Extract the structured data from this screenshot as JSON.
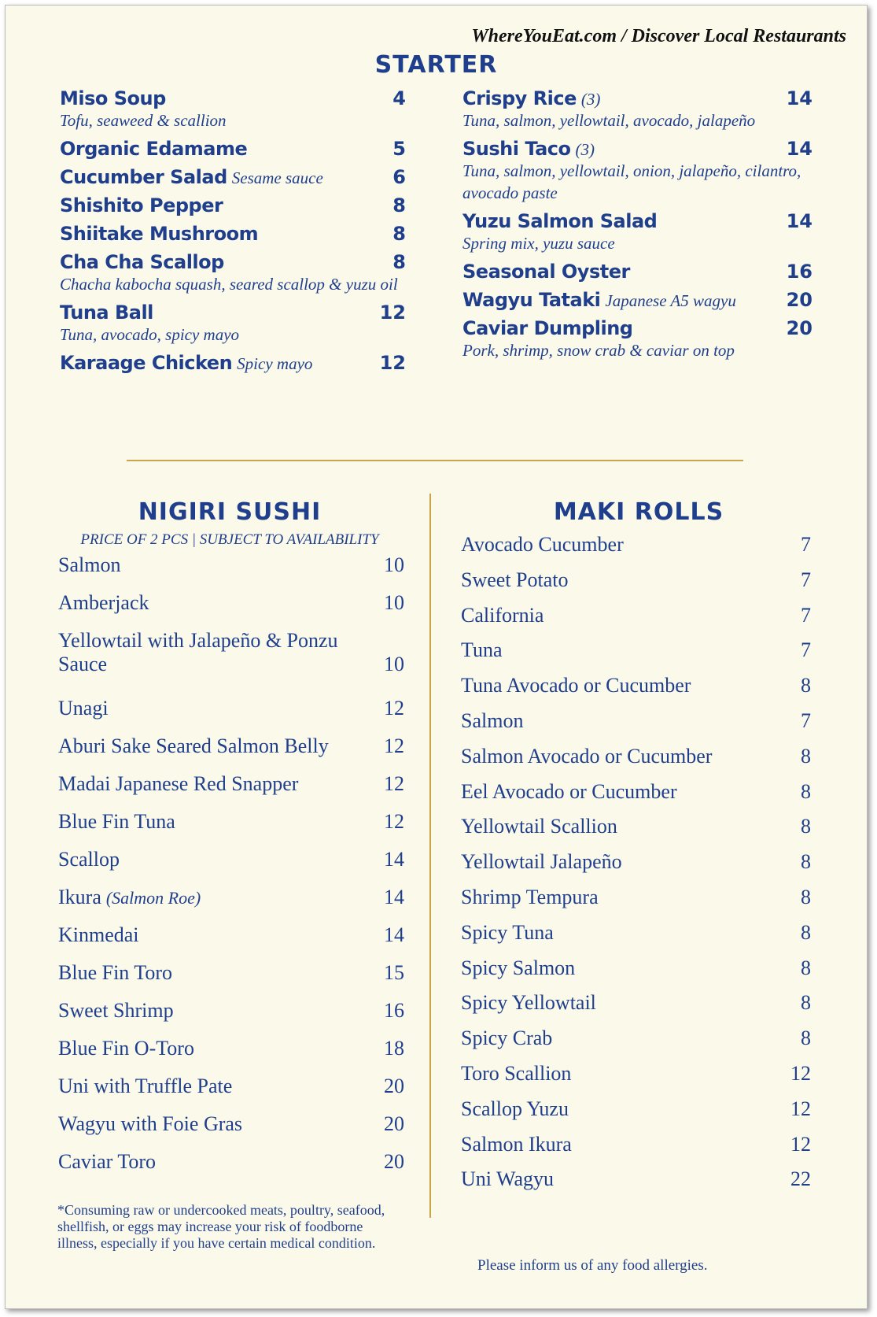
{
  "header": {
    "site": "WhereYouEat.com / Discover Local Restaurants"
  },
  "starter": {
    "title": "STARTER",
    "left": [
      {
        "name": "Miso Soup",
        "price": 4,
        "note": "Tofu, seaweed & scallion"
      },
      {
        "name": "Organic Edamame",
        "price": 5
      },
      {
        "name": "Cucumber Salad",
        "detail": "Sesame sauce",
        "price": 6
      },
      {
        "name": "Shishito Pepper",
        "price": 8
      },
      {
        "name": "Shiitake Mushroom",
        "price": 8
      },
      {
        "name": "Cha Cha Scallop",
        "price": 8,
        "note": "Chacha kabocha squash, seared scallop & yuzu oil"
      },
      {
        "name": "Tuna Ball",
        "price": 12,
        "note": "Tuna, avocado, spicy mayo"
      },
      {
        "name": "Karaage Chicken",
        "detail": "Spicy mayo",
        "price": 12
      }
    ],
    "right": [
      {
        "name": "Crispy Rice",
        "detail": "(3)",
        "price": 14,
        "note": "Tuna, salmon, yellowtail, avocado, jalapeño"
      },
      {
        "name": "Sushi Taco",
        "detail": "(3)",
        "price": 14,
        "note": "Tuna, salmon, yellowtail, onion, jalapeño, cilantro, avocado paste"
      },
      {
        "name": "Yuzu Salmon Salad",
        "price": 14,
        "note": "Spring mix, yuzu sauce"
      },
      {
        "name": "Seasonal Oyster",
        "price": 16
      },
      {
        "name": "Wagyu Tataki",
        "detail": "Japanese A5 wagyu",
        "price": 20
      },
      {
        "name": "Caviar Dumpling",
        "price": 20,
        "note": "Pork, shrimp, snow crab & caviar on top"
      }
    ]
  },
  "nigiri": {
    "title": "NIGIRI SUSHI",
    "subtitle": "PRICE OF 2 PCS | SUBJECT TO AVAILABILITY",
    "items": [
      {
        "name": "Salmon",
        "price": 10
      },
      {
        "name": "Amberjack",
        "price": 10
      },
      {
        "name": "Yellowtail with Jalapeño & Ponzu Sauce",
        "price": 10
      },
      {
        "name": "Unagi",
        "price": 12
      },
      {
        "name": "Aburi Sake Seared Salmon Belly",
        "price": 12
      },
      {
        "name": "Madai Japanese Red Snapper",
        "price": 12
      },
      {
        "name": "Blue Fin Tuna",
        "price": 12
      },
      {
        "name": "Scallop",
        "price": 14
      },
      {
        "name": "Ikura",
        "detail": "(Salmon Roe)",
        "price": 14
      },
      {
        "name": "Kinmedai",
        "price": 14
      },
      {
        "name": "Blue Fin Toro",
        "price": 15
      },
      {
        "name": "Sweet Shrimp",
        "price": 16
      },
      {
        "name": "Blue Fin O-Toro",
        "price": 18
      },
      {
        "name": "Uni with Truffle Pate",
        "price": 20
      },
      {
        "name": "Wagyu with Foie Gras",
        "price": 20
      },
      {
        "name": "Caviar Toro",
        "price": 20
      }
    ],
    "footnote": "*Consuming raw or undercooked meats, poultry, seafood, shellfish, or eggs may increase your risk of foodborne illness, especially if you have certain medical condition."
  },
  "maki": {
    "title": "MAKI ROLLS",
    "items": [
      {
        "name": "Avocado Cucumber",
        "price": 7
      },
      {
        "name": "Sweet Potato",
        "price": 7
      },
      {
        "name": "California",
        "price": 7
      },
      {
        "name": "Tuna",
        "price": 7
      },
      {
        "name": "Tuna Avocado or Cucumber",
        "price": 8
      },
      {
        "name": "Salmon",
        "price": 7
      },
      {
        "name": "Salmon Avocado or Cucumber",
        "price": 8
      },
      {
        "name": "Eel Avocado or Cucumber",
        "price": 8
      },
      {
        "name": "Yellowtail Scallion",
        "price": 8
      },
      {
        "name": "Yellowtail Jalapeño",
        "price": 8
      },
      {
        "name": "Shrimp Tempura",
        "price": 8
      },
      {
        "name": "Spicy Tuna",
        "price": 8
      },
      {
        "name": "Spicy Salmon",
        "price": 8
      },
      {
        "name": "Spicy Yellowtail",
        "price": 8
      },
      {
        "name": "Spicy Crab",
        "price": 8
      },
      {
        "name": "Toro Scallion",
        "price": 12
      },
      {
        "name": "Scallop Yuzu",
        "price": 12
      },
      {
        "name": "Salmon Ikura",
        "price": 12
      },
      {
        "name": "Uni Wagyu",
        "price": 22
      }
    ],
    "allergy": "Please inform us of any food allergies."
  }
}
